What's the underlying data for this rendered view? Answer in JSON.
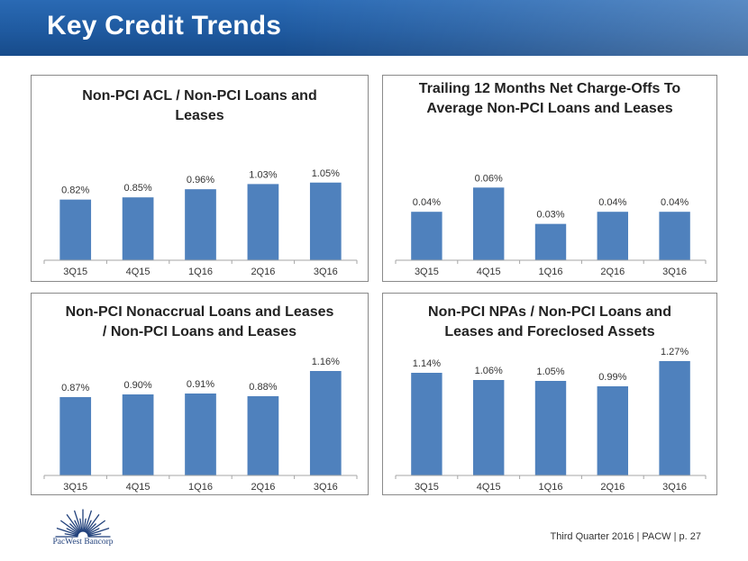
{
  "slide": {
    "title": "Key Credit Trends",
    "footer": "Third Quarter 2016 | PACW | p. 27",
    "logo_text": "PacWest Bancorp",
    "logo_icon": "starburst-logo-icon"
  },
  "colors": {
    "bar": "#4f81bd",
    "header": "#1f5aa0",
    "axis": "#a6a6a6"
  },
  "chart_data": [
    {
      "type": "bar",
      "title_lines": [
        "Non-PCI ACL / Non-PCI Loans and",
        "Leases"
      ],
      "categories": [
        "3Q15",
        "4Q15",
        "1Q16",
        "2Q16",
        "3Q16"
      ],
      "values": [
        0.82,
        0.85,
        0.96,
        1.03,
        1.05
      ],
      "data_labels": [
        "0.82%",
        "0.85%",
        "0.96%",
        "1.03%",
        "1.05%"
      ],
      "ylim": [
        0,
        1.4
      ]
    },
    {
      "type": "bar",
      "title_lines": [
        "Trailing 12 Months Net Charge-Offs To",
        "Average Non-PCI Loans and Leases"
      ],
      "categories": [
        "3Q15",
        "4Q15",
        "1Q16",
        "2Q16",
        "3Q16"
      ],
      "values": [
        0.04,
        0.06,
        0.03,
        0.04,
        0.04
      ],
      "data_labels": [
        "0.04%",
        "0.06%",
        "0.03%",
        "0.04%",
        "0.04%"
      ],
      "ylim": [
        0,
        0.084
      ]
    },
    {
      "type": "bar",
      "title_lines": [
        "Non-PCI Nonaccrual Loans and Leases",
        "/ Non-PCI Loans and Leases"
      ],
      "categories": [
        "3Q15",
        "4Q15",
        "1Q16",
        "2Q16",
        "3Q16"
      ],
      "values": [
        0.87,
        0.9,
        0.91,
        0.88,
        1.16
      ],
      "data_labels": [
        "0.87%",
        "0.90%",
        "0.91%",
        "0.88%",
        "1.16%"
      ],
      "ylim": [
        0,
        1.4
      ]
    },
    {
      "type": "bar",
      "title_lines": [
        "Non-PCI NPAs / Non-PCI Loans and",
        "Leases and Foreclosed Assets"
      ],
      "categories": [
        "3Q15",
        "4Q15",
        "1Q16",
        "2Q16",
        "3Q16"
      ],
      "values": [
        1.14,
        1.06,
        1.05,
        0.99,
        1.27
      ],
      "data_labels": [
        "1.14%",
        "1.06%",
        "1.05%",
        "0.99%",
        "1.27%"
      ],
      "ylim": [
        0,
        1.4
      ]
    }
  ]
}
